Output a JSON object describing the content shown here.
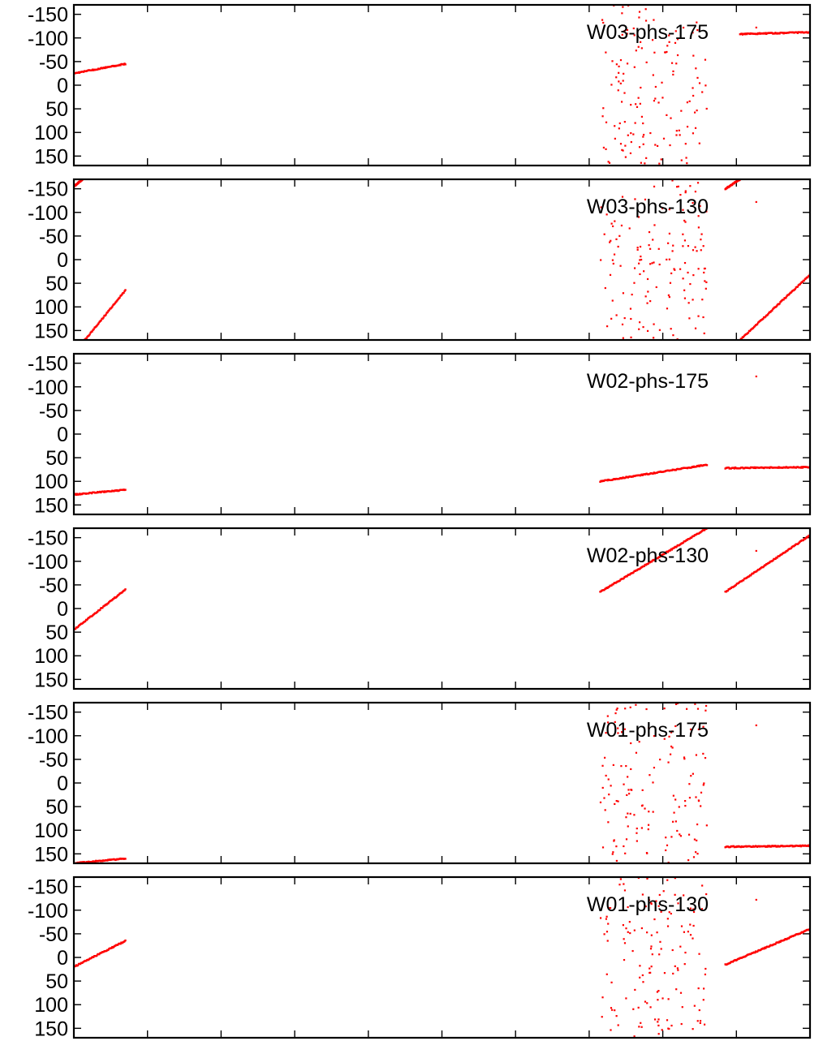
{
  "chart_data": [
    {
      "type": "scatter",
      "title": "W03-phs-175",
      "ylim": [
        170,
        -170
      ],
      "y_ticks": [
        -150,
        -100,
        -50,
        0,
        50,
        100,
        150
      ],
      "y_tick_labels": [
        "-150",
        "-100",
        "-50",
        "0",
        "50",
        "100",
        "150"
      ],
      "x_tick_count": 10,
      "tick_labels_x": [],
      "color": "#ff0000",
      "series": [
        {
          "x": [
            0.0,
            0.07
          ],
          "y": [
            -25,
            -45
          ],
          "kind": "segment"
        },
        {
          "x": [
            0.715,
            0.86
          ],
          "y": [
            -170,
            170
          ],
          "kind": "scatter"
        },
        {
          "x": [
            0.905,
            1.0
          ],
          "y": [
            -108,
            -112
          ],
          "kind": "segment"
        }
      ]
    },
    {
      "type": "scatter",
      "title": "W03-phs-130",
      "ylim": [
        170,
        -170
      ],
      "y_ticks": [
        -150,
        -100,
        -50,
        0,
        50,
        100,
        150
      ],
      "y_tick_labels": [
        "-150",
        "-100",
        "-50",
        "0",
        "50",
        "100",
        "150"
      ],
      "x_tick_count": 10,
      "tick_labels_x": [],
      "color": "#ff0000",
      "series": [
        {
          "x": [
            0.0,
            0.012
          ],
          "y": [
            -155,
            -170
          ],
          "kind": "segment"
        },
        {
          "x": [
            0.015,
            0.07
          ],
          "y": [
            170,
            65
          ],
          "kind": "segment"
        },
        {
          "x": [
            0.715,
            0.86
          ],
          "y": [
            -170,
            170
          ],
          "kind": "scatter"
        },
        {
          "x": [
            0.885,
            0.905
          ],
          "y": [
            -150,
            -170
          ],
          "kind": "segment"
        },
        {
          "x": [
            0.905,
            1.0
          ],
          "y": [
            170,
            32
          ],
          "kind": "segment"
        }
      ]
    },
    {
      "type": "scatter",
      "title": "W02-phs-175",
      "ylim": [
        170,
        -170
      ],
      "y_ticks": [
        -150,
        -100,
        -50,
        0,
        50,
        100,
        150
      ],
      "y_tick_labels": [
        "-150",
        "-100",
        "-50",
        "0",
        "50",
        "100",
        "150"
      ],
      "x_tick_count": 10,
      "tick_labels_x": [],
      "color": "#ff0000",
      "series": [
        {
          "x": [
            0.0,
            0.07
          ],
          "y": [
            128,
            118
          ],
          "kind": "segment"
        },
        {
          "x": [
            0.715,
            0.86
          ],
          "y": [
            100,
            65
          ],
          "kind": "segment"
        },
        {
          "x": [
            0.885,
            1.0
          ],
          "y": [
            72,
            70
          ],
          "kind": "segment"
        }
      ]
    },
    {
      "type": "scatter",
      "title": "W02-phs-130",
      "ylim": [
        170,
        -170
      ],
      "y_ticks": [
        -150,
        -100,
        -50,
        0,
        50,
        100,
        150
      ],
      "y_tick_labels": [
        "-150",
        "-100",
        "-50",
        "0",
        "50",
        "100",
        "150"
      ],
      "x_tick_count": 10,
      "tick_labels_x": [],
      "color": "#ff0000",
      "series": [
        {
          "x": [
            0.0,
            0.07
          ],
          "y": [
            45,
            -40
          ],
          "kind": "segment"
        },
        {
          "x": [
            0.715,
            0.86
          ],
          "y": [
            -35,
            -170
          ],
          "kind": "segment"
        },
        {
          "x": [
            0.885,
            1.0
          ],
          "y": [
            -35,
            -155
          ],
          "kind": "segment"
        }
      ]
    },
    {
      "type": "scatter",
      "title": "W01-phs-175",
      "ylim": [
        170,
        -170
      ],
      "y_ticks": [
        -150,
        -100,
        -50,
        0,
        50,
        100,
        150
      ],
      "y_tick_labels": [
        "-150",
        "-100",
        "-50",
        "0",
        "50",
        "100",
        "150"
      ],
      "x_tick_count": 10,
      "tick_labels_x": [],
      "color": "#ff0000",
      "series": [
        {
          "x": [
            0.0,
            0.07
          ],
          "y": [
            170,
            160
          ],
          "kind": "segment"
        },
        {
          "x": [
            0.715,
            0.86
          ],
          "y": [
            -170,
            170
          ],
          "kind": "scatter"
        },
        {
          "x": [
            0.885,
            1.0
          ],
          "y": [
            135,
            133
          ],
          "kind": "segment"
        }
      ]
    },
    {
      "type": "scatter",
      "title": "W01-phs-130",
      "ylim": [
        170,
        -170
      ],
      "y_ticks": [
        -150,
        -100,
        -50,
        0,
        50,
        100,
        150
      ],
      "y_tick_labels": [
        "-150",
        "-100",
        "-50",
        "0",
        "50",
        "100",
        "150"
      ],
      "x_tick_count": 10,
      "tick_labels_x": [],
      "color": "#ff0000",
      "series": [
        {
          "x": [
            0.0,
            0.07
          ],
          "y": [
            20,
            -35
          ],
          "kind": "segment"
        },
        {
          "x": [
            0.715,
            0.86
          ],
          "y": [
            -170,
            170
          ],
          "kind": "scatter"
        },
        {
          "x": [
            0.885,
            1.0
          ],
          "y": [
            15,
            -60
          ],
          "kind": "segment"
        }
      ]
    }
  ]
}
